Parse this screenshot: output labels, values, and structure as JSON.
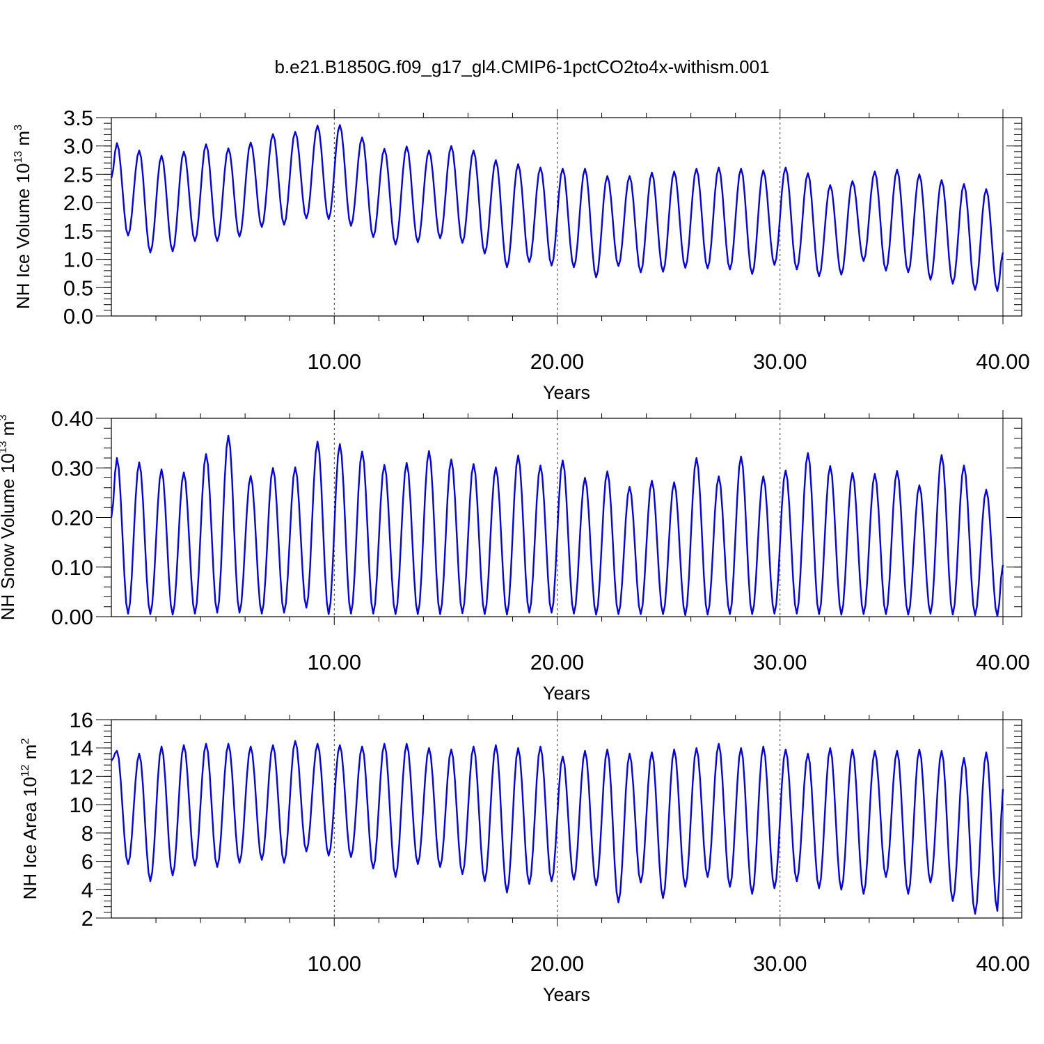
{
  "figure": {
    "title": "b.e21.B1850G.f09_g17_gl4.CMIP6-1pctCO2to4x-withism.001"
  },
  "colors": {
    "line": "#0000ff",
    "axes": "#000000",
    "background": "#ffffff"
  },
  "chart_data": [
    {
      "type": "line",
      "ylabel": {
        "main": "NH Ice Volume 10",
        "sup": "13",
        "tail": " m",
        "sup2": "3"
      },
      "xlabel": "Years",
      "xlim": [
        0.0,
        40.0
      ],
      "ylim": [
        0.0,
        3.5
      ],
      "yticks": [
        0.0,
        0.5,
        1.0,
        1.5,
        2.0,
        2.5,
        3.0,
        3.5
      ],
      "ytick_labels": [
        "0.0",
        "0.5",
        "1.0",
        "1.5",
        "2.0",
        "2.5",
        "3.0",
        "3.5"
      ],
      "yminor_step": 0.1,
      "xticks": [
        10,
        20,
        30,
        40
      ],
      "xtick_labels": [
        "10.00",
        "20.00",
        "30.00",
        "40.00"
      ],
      "grid": "dashed vertical at 10, 20, 30",
      "series_encoding": "monthly values, 12 per year starting at year 0",
      "series": [
        {
          "name": "",
          "maxima": [
            3.05,
            2.92,
            2.83,
            2.9,
            3.03,
            2.96,
            3.06,
            3.21,
            3.25,
            3.36,
            3.37,
            3.15,
            2.95,
            2.99,
            2.92,
            3.0,
            2.92,
            2.75,
            2.68,
            2.62,
            2.6,
            2.6,
            2.47,
            2.47,
            2.53,
            2.55,
            2.6,
            2.62,
            2.6,
            2.57,
            2.62,
            2.52,
            2.31,
            2.38,
            2.55,
            2.58,
            2.5,
            2.4,
            2.33,
            2.24
          ],
          "minima": [
            1.42,
            1.12,
            1.14,
            1.32,
            1.32,
            1.4,
            1.57,
            1.61,
            1.72,
            1.71,
            1.59,
            1.39,
            1.26,
            1.3,
            1.37,
            1.29,
            1.1,
            0.86,
            0.95,
            0.89,
            0.86,
            0.68,
            0.88,
            0.77,
            0.78,
            0.85,
            0.84,
            0.82,
            0.74,
            0.9,
            0.82,
            0.7,
            0.73,
            0.97,
            0.8,
            0.77,
            0.64,
            0.57,
            0.46,
            0.44
          ],
          "start": 2.43,
          "end": 1.12
        }
      ]
    },
    {
      "type": "line",
      "ylabel": {
        "main": "NH Snow Volume 10",
        "sup": "13",
        "tail": " m",
        "sup2": "3"
      },
      "xlabel": "Years",
      "xlim": [
        0.0,
        40.0
      ],
      "ylim": [
        0.0,
        0.4
      ],
      "yticks": [
        0.0,
        0.1,
        0.2,
        0.3,
        0.4
      ],
      "ytick_labels": [
        "0.00",
        "0.10",
        "0.20",
        "0.30",
        "0.40"
      ],
      "yminor_step": 0.02,
      "xticks": [
        10,
        20,
        30,
        40
      ],
      "xtick_labels": [
        "10.00",
        "20.00",
        "30.00",
        "40.00"
      ],
      "grid": "dashed vertical at 10, 20, 30",
      "series_encoding": "monthly values, 12 per year starting at year 0",
      "series": [
        {
          "name": "",
          "maxima": [
            0.32,
            0.311,
            0.297,
            0.291,
            0.328,
            0.365,
            0.284,
            0.3,
            0.301,
            0.353,
            0.348,
            0.333,
            0.306,
            0.31,
            0.334,
            0.317,
            0.308,
            0.301,
            0.325,
            0.305,
            0.315,
            0.28,
            0.293,
            0.262,
            0.274,
            0.271,
            0.32,
            0.283,
            0.323,
            0.283,
            0.295,
            0.33,
            0.304,
            0.29,
            0.288,
            0.294,
            0.265,
            0.326,
            0.305,
            0.256
          ],
          "minima": [
            0.006,
            0.005,
            0.004,
            0.006,
            0.008,
            0.008,
            0.006,
            0.008,
            0.018,
            0.005,
            0.006,
            0.006,
            0.005,
            0.005,
            0.005,
            0.007,
            0.005,
            0.004,
            0.008,
            0.008,
            0.006,
            0.004,
            0.005,
            0.005,
            0.005,
            0.003,
            0.004,
            0.005,
            0.005,
            0.006,
            0.006,
            0.005,
            0.004,
            0.005,
            0.005,
            0.004,
            0.006,
            0.004,
            0.003,
            0.001
          ],
          "start": 0.2,
          "end": 0.104
        }
      ]
    },
    {
      "type": "line",
      "ylabel": {
        "main": "NH Ice Area 10",
        "sup": "12",
        "tail": " m",
        "sup2": "2"
      },
      "xlabel": "Years",
      "xlim": [
        0.0,
        40.0
      ],
      "ylim": [
        2,
        16
      ],
      "yticks": [
        2,
        4,
        6,
        8,
        10,
        12,
        14,
        16
      ],
      "ytick_labels": [
        "2",
        "4",
        "6",
        "8",
        "10",
        "12",
        "14",
        "16"
      ],
      "yminor_step": 0.4,
      "xticks": [
        10,
        20,
        30,
        40
      ],
      "xtick_labels": [
        "10.00",
        "20.00",
        "30.00",
        "40.00"
      ],
      "grid": "dashed vertical at 10, 20, 30",
      "series_encoding": "monthly values, 12 per year starting at year 0",
      "series": [
        {
          "name": "",
          "maxima": [
            13.8,
            13.6,
            14.1,
            14.2,
            14.3,
            14.3,
            14.1,
            14.2,
            14.5,
            14.3,
            14.2,
            14.1,
            14.3,
            14.3,
            14.0,
            13.9,
            14.1,
            14.2,
            14.0,
            14.1,
            13.4,
            13.8,
            13.9,
            13.6,
            13.7,
            13.9,
            14.0,
            14.3,
            14.0,
            14.1,
            13.9,
            13.6,
            14.0,
            13.9,
            13.8,
            13.8,
            13.9,
            13.8,
            13.3,
            13.7
          ],
          "minima": [
            5.8,
            4.6,
            5.0,
            5.7,
            5.6,
            5.9,
            6.1,
            5.9,
            6.7,
            6.4,
            6.3,
            5.5,
            4.9,
            5.8,
            5.6,
            5.1,
            4.6,
            3.8,
            4.4,
            4.6,
            4.7,
            4.3,
            3.1,
            4.5,
            3.4,
            4.2,
            4.9,
            4.2,
            3.7,
            4.1,
            4.6,
            4.1,
            4.0,
            3.7,
            4.9,
            3.7,
            4.5,
            3.2,
            2.3,
            2.5
          ],
          "start": 13.1,
          "end": 11.1
        }
      ]
    }
  ]
}
